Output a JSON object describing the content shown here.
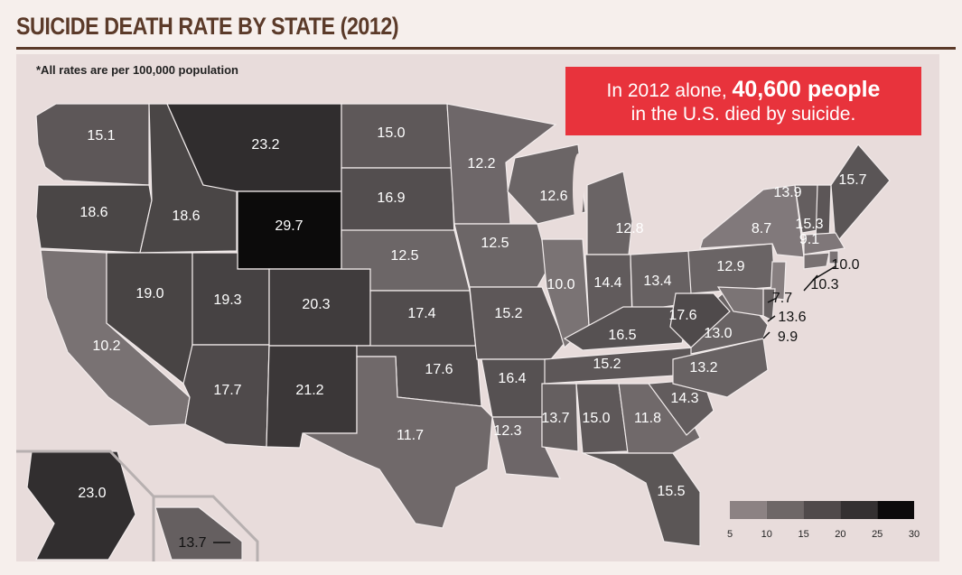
{
  "title": "SUICIDE DEATH RATE BY STATE (2012)",
  "footnote": "*All rates are per 100,000 population",
  "callout": {
    "prefix": "In 2012 alone, ",
    "highlight": "40,600 people",
    "line2": "in the U.S. died by suicide."
  },
  "legend": {
    "ticks": [
      "5",
      "10",
      "15",
      "20",
      "25",
      "30"
    ],
    "colors": [
      "#8c8283",
      "#6e6767",
      "#504a4b",
      "#343031",
      "#0c0a0b"
    ]
  },
  "states": {
    "WA": "15.1",
    "OR": "18.6",
    "CA": "10.2",
    "ID": "18.6",
    "NV": "19.0",
    "MT": "23.2",
    "WY": "29.7",
    "UT": "19.3",
    "AZ": "17.7",
    "CO": "20.3",
    "NM": "21.2",
    "ND": "15.0",
    "SD": "16.9",
    "NE": "12.5",
    "KS": "17.4",
    "OK": "17.6",
    "TX": "11.7",
    "MN": "12.2",
    "IA": "12.5",
    "MO": "15.2",
    "AR": "16.4",
    "LA": "12.3",
    "WI": "12.6",
    "IL": "10.0",
    "MI": "12.8",
    "IN": "14.4",
    "OH": "13.4",
    "KY": "16.5",
    "TN": "15.2",
    "MS": "13.7",
    "AL": "15.0",
    "GA": "11.8",
    "FL": "15.5",
    "SC": "14.3",
    "NC": "13.2",
    "VA": "13.0",
    "WV": "17.6",
    "PA": "12.9",
    "NY": "8.7",
    "VT": "13.9",
    "NH": "15.3",
    "ME": "15.7",
    "MA": "9.1",
    "RI": "10.0",
    "CT": "10.3",
    "NJ": "7.7",
    "DE": "13.6",
    "MD": "9.9",
    "AK": "23.0",
    "HI": "13.7"
  }
}
